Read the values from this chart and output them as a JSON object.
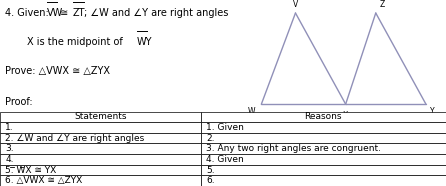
{
  "bg_color": "#ffffff",
  "statements": [
    "1.",
    "2. ∠W and ∠Y are right angles",
    "3.",
    "4.",
    "5. WX ≅ YX",
    "6. △VWX ≅ △ZYX"
  ],
  "reasons": [
    "1. Given",
    "2.",
    "3. Any two right angles are congruent.",
    "4. Given",
    "5.",
    "6."
  ],
  "col_split": 0.45,
  "fig_color": "#9090b8",
  "fig_lw": 1.0,
  "label_fontsize": 5.5,
  "text_fontsize": 7.0,
  "table_fontsize": 6.5
}
